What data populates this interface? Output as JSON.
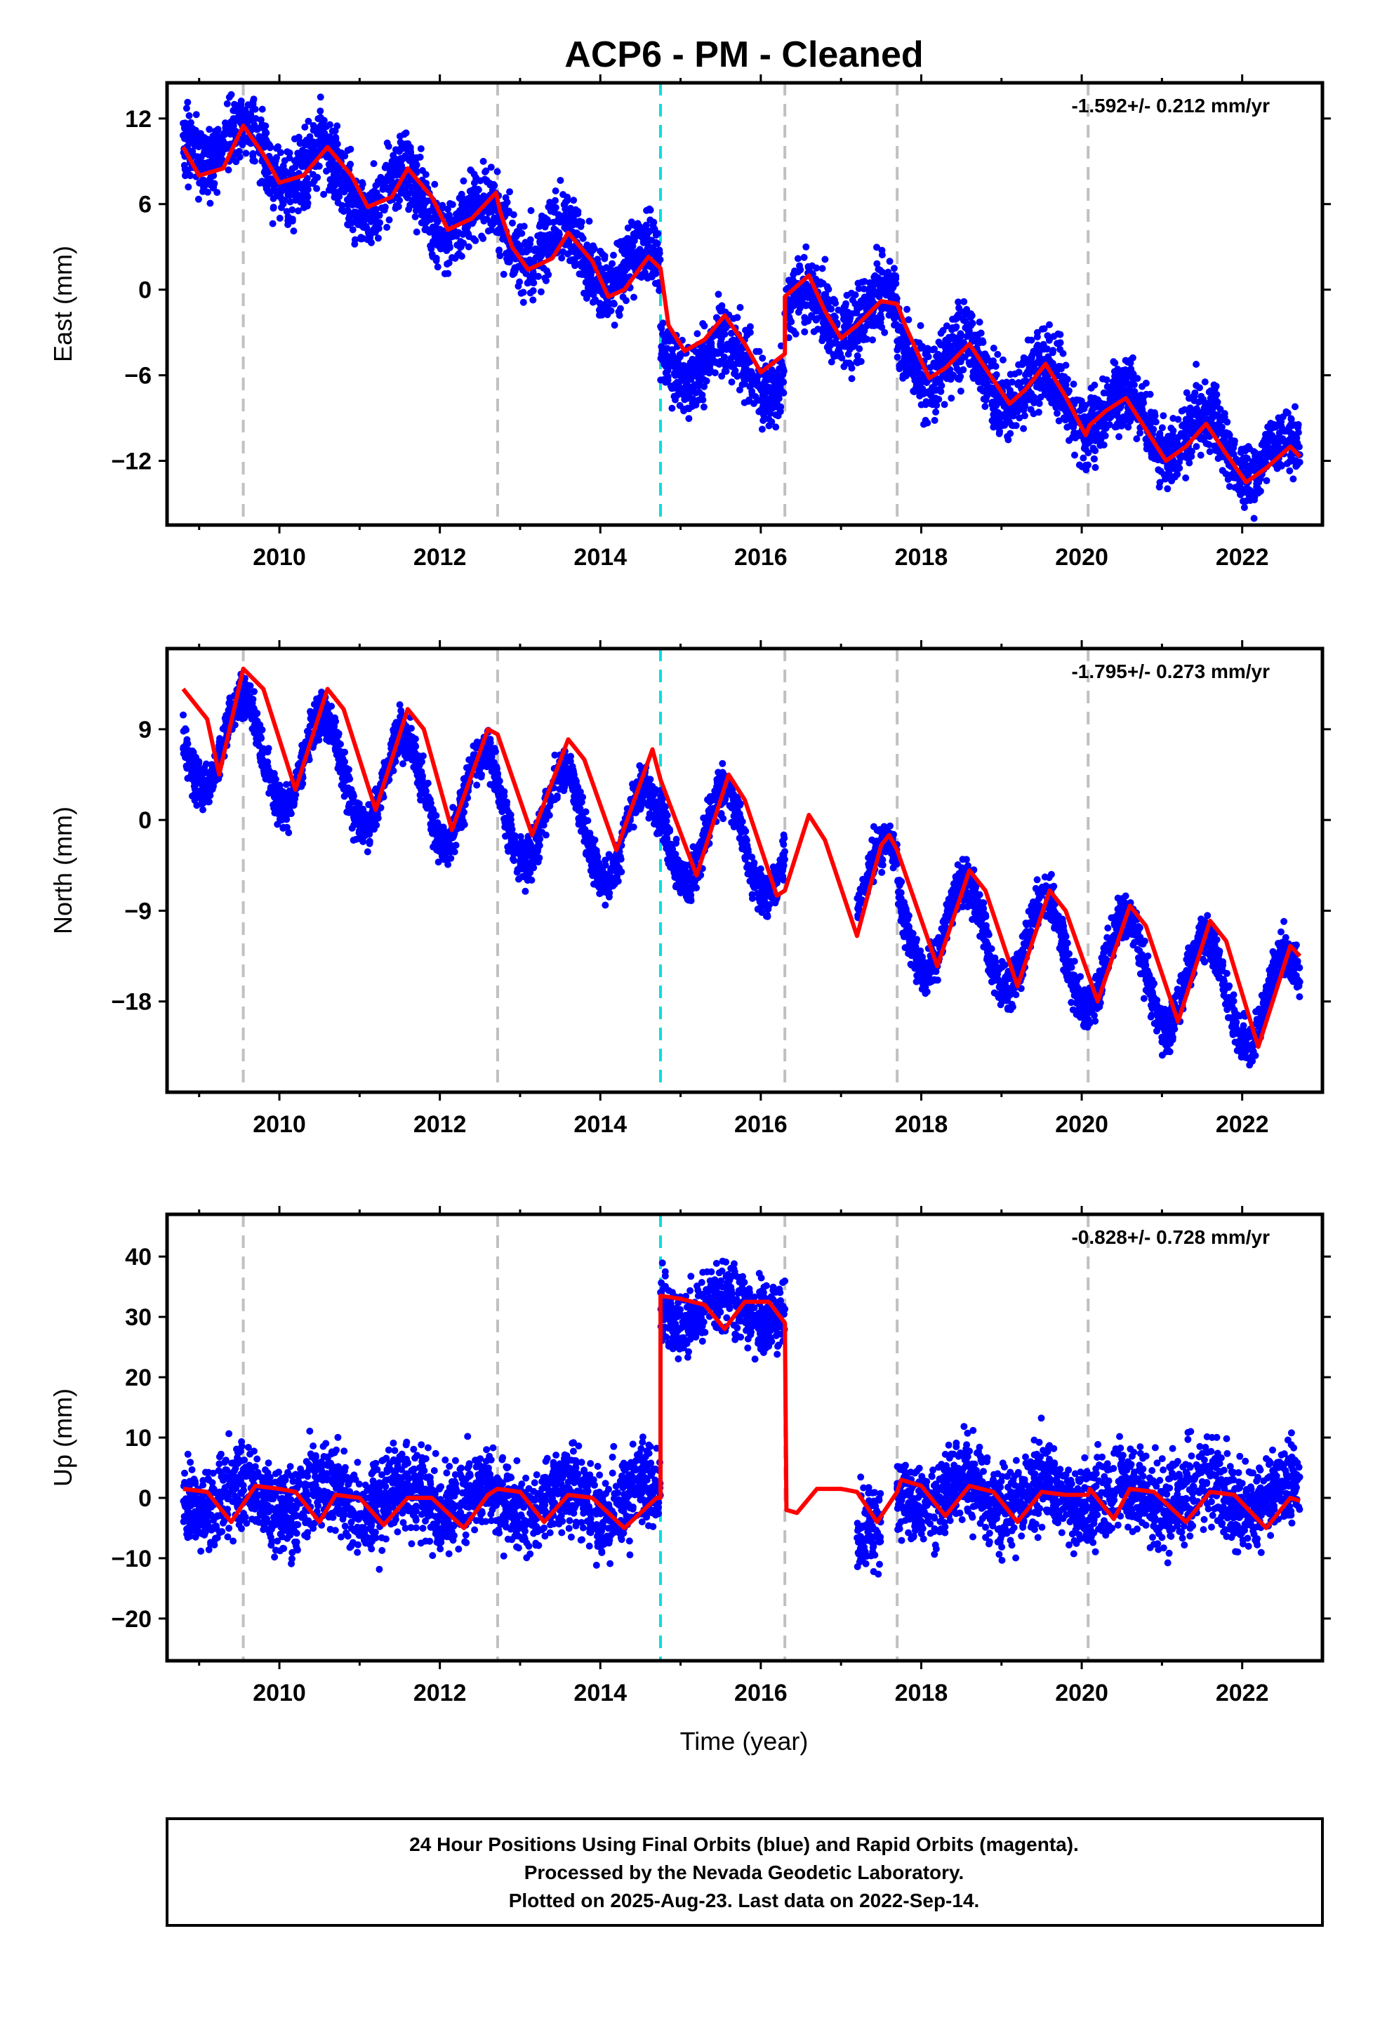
{
  "chart_data": {
    "title": "ACP6  - PM - Cleaned",
    "type": "scatter",
    "x_range": [
      2008.6,
      2023.0
    ],
    "x_ticks": [
      2010,
      2012,
      2014,
      2016,
      2018,
      2020,
      2022
    ],
    "xlabel": "Time (year)",
    "breaks": {
      "gray_dashed": [
        2009.55,
        2012.72,
        2016.3,
        2017.7,
        2020.08
      ],
      "cyan_dashed": [
        2014.75
      ]
    },
    "colors": {
      "points": "#0000ff",
      "model": "#ff0000",
      "equip_break": "#c0c0c0",
      "offset_break": "#00e0e0"
    },
    "panels": [
      {
        "name": "east",
        "ylabel": "East (mm)",
        "ylim": [
          -16.5,
          14.5
        ],
        "yticks": [
          12,
          6,
          0,
          -6,
          -12
        ],
        "rate": "-1.592+/- 0.212 mm/yr",
        "model_points": [
          [
            2008.8,
            10.0
          ],
          [
            2009.0,
            8.0
          ],
          [
            2009.3,
            8.5
          ],
          [
            2009.55,
            11.5
          ],
          [
            2009.8,
            9.5
          ],
          [
            2010.0,
            7.5
          ],
          [
            2010.3,
            8.0
          ],
          [
            2010.6,
            10.0
          ],
          [
            2010.9,
            8.0
          ],
          [
            2011.1,
            5.8
          ],
          [
            2011.4,
            6.5
          ],
          [
            2011.6,
            8.5
          ],
          [
            2011.9,
            6.5
          ],
          [
            2012.1,
            4.2
          ],
          [
            2012.4,
            5.0
          ],
          [
            2012.7,
            6.8
          ],
          [
            2012.75,
            5.5
          ],
          [
            2012.9,
            3.0
          ],
          [
            2013.1,
            1.4
          ],
          [
            2013.4,
            2.2
          ],
          [
            2013.6,
            4.0
          ],
          [
            2013.9,
            2.0
          ],
          [
            2014.1,
            -0.5
          ],
          [
            2014.3,
            0.0
          ],
          [
            2014.6,
            2.3
          ],
          [
            2014.75,
            1.5
          ],
          [
            2014.85,
            -2.5
          ],
          [
            2015.05,
            -4.3
          ],
          [
            2015.3,
            -3.5
          ],
          [
            2015.55,
            -1.8
          ],
          [
            2015.8,
            -3.8
          ],
          [
            2016.0,
            -5.8
          ],
          [
            2016.3,
            -4.5
          ],
          [
            2016.3,
            -0.5
          ],
          [
            2016.5,
            0.5
          ],
          [
            2016.6,
            1.0
          ],
          [
            2016.8,
            -1.5
          ],
          [
            2017.0,
            -3.4
          ],
          [
            2017.2,
            -2.5
          ],
          [
            2017.5,
            -0.8
          ],
          [
            2017.7,
            -1.0
          ],
          [
            2017.8,
            -2.5
          ],
          [
            2018.0,
            -5.0
          ],
          [
            2018.1,
            -6.2
          ],
          [
            2018.3,
            -5.5
          ],
          [
            2018.6,
            -3.8
          ],
          [
            2018.8,
            -5.5
          ],
          [
            2019.1,
            -8.0
          ],
          [
            2019.3,
            -7.0
          ],
          [
            2019.55,
            -5.2
          ],
          [
            2019.8,
            -7.5
          ],
          [
            2020.05,
            -10.2
          ],
          [
            2020.1,
            -9.5
          ],
          [
            2020.3,
            -8.5
          ],
          [
            2020.55,
            -7.6
          ],
          [
            2020.8,
            -9.8
          ],
          [
            2021.05,
            -12.0
          ],
          [
            2021.3,
            -11.0
          ],
          [
            2021.55,
            -9.4
          ],
          [
            2021.8,
            -11.5
          ],
          [
            2022.05,
            -13.5
          ],
          [
            2022.3,
            -12.5
          ],
          [
            2022.6,
            -11.0
          ],
          [
            2022.72,
            -11.7
          ]
        ],
        "data_segments": [
          {
            "t0": 2008.8,
            "t1": 2014.75,
            "mid": 11.0,
            "slope": -1.7,
            "amp": 1.8,
            "noise": 1.8
          },
          {
            "t0": 2014.75,
            "t1": 2016.3,
            "mid": -4.3,
            "slope": -1.0,
            "amp": 1.8,
            "noise": 1.8
          },
          {
            "t0": 2016.3,
            "t1": 2017.7,
            "mid": -1.6,
            "slope": 0.0,
            "amp": 1.5,
            "noise": 1.8
          },
          {
            "t0": 2017.7,
            "t1": 2022.72,
            "mid": -4.0,
            "slope": -1.7,
            "amp": 1.8,
            "noise": 1.8
          }
        ]
      },
      {
        "name": "north",
        "ylabel": "North (mm)",
        "ylim": [
          -27,
          17
        ],
        "yticks": [
          9,
          0,
          -9,
          -18
        ],
        "rate": "-1.795+/- 0.273 mm/yr",
        "model_points": [
          [
            2008.8,
            13.0
          ],
          [
            2009.1,
            10.0
          ],
          [
            2009.25,
            4.5
          ],
          [
            2009.55,
            15.0
          ],
          [
            2009.8,
            13.0
          ],
          [
            2010.2,
            3.0
          ],
          [
            2010.6,
            13.0
          ],
          [
            2010.8,
            11.0
          ],
          [
            2011.2,
            1.0
          ],
          [
            2011.6,
            11.0
          ],
          [
            2011.8,
            9.0
          ],
          [
            2012.15,
            -1.0
          ],
          [
            2012.6,
            9.0
          ],
          [
            2012.72,
            8.5
          ],
          [
            2013.15,
            -1.5
          ],
          [
            2013.6,
            8.0
          ],
          [
            2013.8,
            6.0
          ],
          [
            2014.2,
            -3.0
          ],
          [
            2014.65,
            7.0
          ],
          [
            2014.75,
            4.0
          ],
          [
            2015.2,
            -5.5
          ],
          [
            2015.6,
            4.5
          ],
          [
            2015.8,
            2.0
          ],
          [
            2016.2,
            -7.5
          ],
          [
            2016.3,
            -7.0
          ],
          [
            2016.6,
            0.5
          ],
          [
            2016.8,
            -2.0
          ],
          [
            2017.2,
            -11.5
          ],
          [
            2017.5,
            -2.5
          ],
          [
            2017.6,
            -1.5
          ],
          [
            2017.7,
            -3.0
          ],
          [
            2018.2,
            -14.5
          ],
          [
            2018.6,
            -5.0
          ],
          [
            2018.8,
            -7.0
          ],
          [
            2019.2,
            -16.5
          ],
          [
            2019.6,
            -7.0
          ],
          [
            2019.8,
            -9.0
          ],
          [
            2020.2,
            -18.0
          ],
          [
            2020.6,
            -8.5
          ],
          [
            2020.8,
            -10.5
          ],
          [
            2021.2,
            -20.0
          ],
          [
            2021.6,
            -10.0
          ],
          [
            2021.8,
            -12.0
          ],
          [
            2022.2,
            -22.5
          ],
          [
            2022.6,
            -12.5
          ],
          [
            2022.72,
            -13.5
          ]
        ],
        "data_segments": [
          {
            "t0": 2008.8,
            "t1": 2014.75,
            "mid": 8.5,
            "slope": -1.8,
            "amp": 5.0,
            "noise": 1.6
          },
          {
            "t0": 2014.75,
            "t1": 2016.3,
            "mid": -0.5,
            "slope": -1.8,
            "amp": 5.0,
            "noise": 1.6
          },
          {
            "t0": 2017.2,
            "t1": 2017.7,
            "mid": -6.5,
            "slope": 0.0,
            "amp": 4.5,
            "noise": 1.6
          },
          {
            "t0": 2017.7,
            "t1": 2022.72,
            "mid": -9.5,
            "slope": -1.8,
            "amp": 5.0,
            "noise": 1.6
          }
        ]
      },
      {
        "name": "up",
        "ylabel": "Up (mm)",
        "ylim": [
          -27,
          47
        ],
        "yticks": [
          40,
          30,
          20,
          10,
          0,
          -10,
          -20
        ],
        "rate": "-0.828+/- 0.728 mm/yr",
        "model_points": [
          [
            2008.8,
            1.5
          ],
          [
            2009.1,
            1.0
          ],
          [
            2009.4,
            -4.0
          ],
          [
            2009.7,
            2.0
          ],
          [
            2010.0,
            1.5
          ],
          [
            2010.2,
            1.0
          ],
          [
            2010.5,
            -4.0
          ],
          [
            2010.7,
            0.5
          ],
          [
            2011.0,
            0.0
          ],
          [
            2011.3,
            -4.5
          ],
          [
            2011.6,
            0.0
          ],
          [
            2011.9,
            0.0
          ],
          [
            2012.3,
            -5.0
          ],
          [
            2012.6,
            0.5
          ],
          [
            2012.72,
            1.5
          ],
          [
            2013.0,
            1.0
          ],
          [
            2013.3,
            -4.0
          ],
          [
            2013.6,
            0.5
          ],
          [
            2013.9,
            0.0
          ],
          [
            2014.3,
            -5.0
          ],
          [
            2014.7,
            0.0
          ],
          [
            2014.75,
            0.0
          ],
          [
            2014.75,
            33.5
          ],
          [
            2015.0,
            33.0
          ],
          [
            2015.3,
            32.0
          ],
          [
            2015.55,
            28.0
          ],
          [
            2015.8,
            32.5
          ],
          [
            2016.1,
            32.5
          ],
          [
            2016.3,
            29.0
          ],
          [
            2016.32,
            -2.0
          ],
          [
            2016.45,
            -2.5
          ],
          [
            2016.7,
            1.5
          ],
          [
            2017.0,
            1.5
          ],
          [
            2017.2,
            1.0
          ],
          [
            2017.45,
            -4.0
          ],
          [
            2017.7,
            1.0
          ],
          [
            2017.75,
            3.0
          ],
          [
            2018.0,
            2.0
          ],
          [
            2018.3,
            -3.0
          ],
          [
            2018.6,
            2.0
          ],
          [
            2018.9,
            1.0
          ],
          [
            2019.2,
            -4.0
          ],
          [
            2019.5,
            1.0
          ],
          [
            2019.8,
            0.5
          ],
          [
            2020.08,
            0.5
          ],
          [
            2020.1,
            1.5
          ],
          [
            2020.4,
            -3.5
          ],
          [
            2020.6,
            1.5
          ],
          [
            2020.9,
            1.0
          ],
          [
            2021.3,
            -4.0
          ],
          [
            2021.6,
            1.0
          ],
          [
            2021.9,
            0.5
          ],
          [
            2022.3,
            -5.0
          ],
          [
            2022.6,
            0.0
          ],
          [
            2022.72,
            -0.5
          ]
        ],
        "data_segments": [
          {
            "t0": 2008.8,
            "t1": 2014.75,
            "mid": 0.0,
            "slope": 0.0,
            "amp": 2.5,
            "noise": 5.0
          },
          {
            "t0": 2014.75,
            "t1": 2016.3,
            "mid": 31.5,
            "slope": 0.0,
            "amp": 2.5,
            "noise": 4.0
          },
          {
            "t0": 2017.2,
            "t1": 2017.5,
            "mid": -5.0,
            "slope": 0.0,
            "amp": 1.0,
            "noise": 5.0
          },
          {
            "t0": 2017.7,
            "t1": 2022.72,
            "mid": 0.5,
            "slope": 0.0,
            "amp": 2.5,
            "noise": 5.0
          }
        ]
      }
    ]
  },
  "footer": {
    "line1": "24 Hour Positions Using Final Orbits (blue) and Rapid Orbits (magenta).",
    "line2": "Processed by the Nevada Geodetic Laboratory.",
    "line3": "Plotted on 2025-Aug-23. Last data on 2022-Sep-14."
  }
}
